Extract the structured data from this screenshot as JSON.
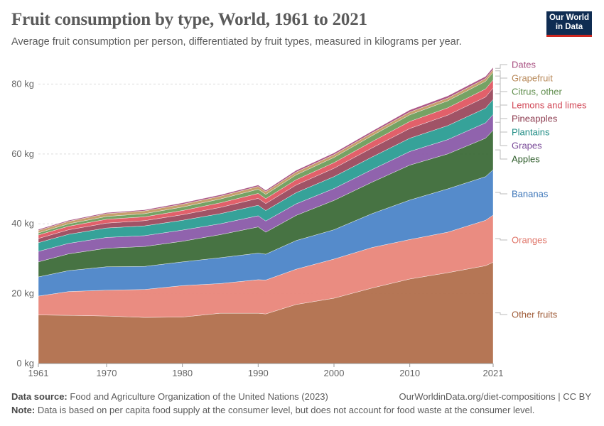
{
  "header": {
    "title": "Fruit consumption by type, World, 1961 to 2021",
    "subtitle": "Average fruit consumption per person, differentiated by fruit types, measured in kilograms per year."
  },
  "logo": {
    "line1": "Our World",
    "line2": "in Data",
    "bg": "#0f2c52",
    "accent": "#ce261e"
  },
  "footer": {
    "source_label": "Data source:",
    "source_text": "Food and Agriculture Organization of the United Nations (2023)",
    "url_text": "OurWorldinData.org/diet-compositions | CC BY",
    "note_label": "Note:",
    "note_text": "Data is based on per capita food supply at the consumer level, but does not account for food waste at the consumer level."
  },
  "chart_data": {
    "type": "area",
    "stacked": true,
    "x": [
      1961,
      1965,
      1970,
      1975,
      1980,
      1985,
      1990,
      1991,
      1995,
      2000,
      2005,
      2010,
      2015,
      2020,
      2021
    ],
    "xticks": [
      1961,
      1970,
      1980,
      1990,
      2000,
      2010,
      2021
    ],
    "ylim": [
      0,
      87
    ],
    "yticks": [
      0,
      20,
      40,
      60,
      80
    ],
    "ytick_labels": [
      "0 kg",
      "20 kg",
      "40 kg",
      "60 kg",
      "80 kg"
    ],
    "grid": "horizontal",
    "legend": "right",
    "series": [
      {
        "name": "Other fruits",
        "color": "#b16f4c",
        "values": [
          13.9,
          13.8,
          13.6,
          13.2,
          13.3,
          14.4,
          14.4,
          14.2,
          16.9,
          18.7,
          21.6,
          24.2,
          26.0,
          28.0,
          29.0
        ]
      },
      {
        "name": "Oranges",
        "color": "#e9867a",
        "values": [
          5.4,
          6.8,
          7.4,
          8.0,
          9.0,
          8.5,
          9.6,
          9.7,
          10.1,
          11.2,
          11.6,
          11.3,
          11.6,
          13.0,
          13.5
        ]
      },
      {
        "name": "Bananas",
        "color": "#4c85c8",
        "values": [
          5.5,
          6.0,
          6.7,
          6.6,
          6.8,
          7.4,
          7.6,
          7.4,
          8.2,
          8.4,
          9.7,
          11.3,
          12.4,
          12.5,
          13.0
        ]
      },
      {
        "name": "Apples",
        "color": "#3d6b39",
        "values": [
          4.3,
          4.8,
          5.3,
          5.7,
          5.9,
          6.6,
          7.5,
          6.3,
          7.2,
          8.4,
          9.0,
          10.0,
          10.0,
          11.0,
          11.3
        ]
      },
      {
        "name": "Grapes",
        "color": "#8a5ba9",
        "values": [
          3.0,
          3.0,
          3.1,
          3.1,
          3.2,
          3.1,
          3.2,
          3.2,
          3.3,
          3.4,
          3.6,
          3.9,
          4.1,
          4.4,
          4.5
        ]
      },
      {
        "name": "Plantains",
        "color": "#2b9d94",
        "values": [
          2.5,
          2.6,
          2.7,
          2.8,
          2.8,
          2.9,
          3.0,
          3.0,
          3.2,
          3.4,
          3.6,
          3.8,
          4.0,
          4.2,
          4.3
        ]
      },
      {
        "name": "Pineapples",
        "color": "#9b4a5e",
        "values": [
          1.2,
          1.3,
          1.4,
          1.5,
          1.6,
          1.8,
          2.0,
          2.0,
          2.2,
          2.4,
          2.6,
          2.8,
          3.0,
          3.2,
          3.3
        ]
      },
      {
        "name": "Lemons and limes",
        "color": "#e05762",
        "values": [
          1.0,
          1.0,
          1.1,
          1.1,
          1.2,
          1.3,
          1.4,
          1.4,
          1.5,
          1.6,
          1.8,
          2.0,
          2.1,
          2.3,
          2.3
        ]
      },
      {
        "name": "Citrus, other",
        "color": "#6f9d5c",
        "values": [
          0.6,
          0.7,
          0.8,
          0.9,
          1.0,
          1.1,
          1.2,
          1.2,
          1.4,
          1.5,
          1.7,
          1.9,
          2.0,
          2.2,
          2.2
        ]
      },
      {
        "name": "Grapefruit",
        "color": "#c49a64",
        "values": [
          0.7,
          0.7,
          0.8,
          0.8,
          0.8,
          0.8,
          0.8,
          0.8,
          0.8,
          0.8,
          0.8,
          0.8,
          0.8,
          0.8,
          0.8
        ]
      },
      {
        "name": "Dates",
        "color": "#a74d7f",
        "values": [
          0.3,
          0.3,
          0.3,
          0.3,
          0.4,
          0.4,
          0.4,
          0.4,
          0.5,
          0.5,
          0.5,
          0.6,
          0.6,
          0.6,
          0.6
        ]
      }
    ]
  }
}
